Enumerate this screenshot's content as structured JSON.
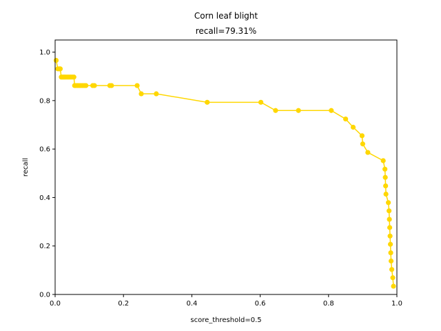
{
  "chart_data": {
    "type": "line",
    "title": "Corn leaf blight",
    "subtitle": "recall=79.31%",
    "xlabel": "score_threshold=0.5",
    "ylabel": "recall",
    "xlim": [
      0,
      1
    ],
    "ylim": [
      0,
      1.05
    ],
    "x_ticks": [
      "0.0",
      "0.2",
      "0.4",
      "0.6",
      "0.8",
      "1.0"
    ],
    "y_ticks": [
      "0.0",
      "0.2",
      "0.4",
      "0.6",
      "0.8",
      "1.0"
    ],
    "grid": false,
    "series_color": "#ffd700",
    "series": [
      {
        "x": [
          0.003,
          0.008,
          0.012,
          0.015,
          0.018,
          0.022,
          0.026,
          0.03,
          0.035,
          0.04,
          0.045,
          0.05,
          0.055,
          0.057,
          0.06,
          0.065,
          0.07,
          0.075,
          0.08,
          0.085,
          0.09,
          0.11,
          0.115,
          0.16,
          0.165,
          0.24,
          0.252,
          0.296,
          0.445,
          0.602,
          0.645,
          0.712,
          0.808,
          0.85,
          0.872,
          0.898,
          0.9,
          0.915,
          0.96,
          0.965,
          0.966,
          0.967,
          0.968,
          0.975,
          0.977,
          0.978,
          0.979,
          0.98,
          0.981,
          0.982,
          0.983,
          0.985,
          0.988,
          0.99
        ],
        "y": [
          0.966,
          0.931,
          0.931,
          0.931,
          0.897,
          0.897,
          0.897,
          0.897,
          0.897,
          0.897,
          0.897,
          0.897,
          0.897,
          0.862,
          0.862,
          0.862,
          0.862,
          0.862,
          0.862,
          0.862,
          0.862,
          0.862,
          0.862,
          0.862,
          0.862,
          0.862,
          0.828,
          0.828,
          0.793,
          0.793,
          0.759,
          0.759,
          0.759,
          0.724,
          0.69,
          0.655,
          0.621,
          0.586,
          0.552,
          0.517,
          0.483,
          0.448,
          0.414,
          0.379,
          0.345,
          0.31,
          0.276,
          0.241,
          0.207,
          0.172,
          0.138,
          0.103,
          0.069,
          0.034
        ]
      }
    ]
  }
}
